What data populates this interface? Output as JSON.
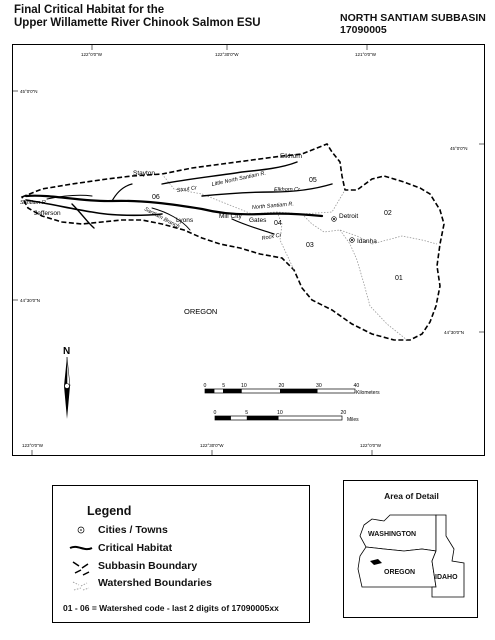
{
  "title": {
    "line1": "Final Critical Habitat for the",
    "line2": "Upper Willamette River Chinook Salmon ESU"
  },
  "subbasin": {
    "name": "NORTH SANTIAM SUBBASIN",
    "code": "17090005"
  },
  "coords": {
    "top_lon_1": "122°0'0\"W",
    "top_lon_2": "122°30'0\"W",
    "top_lon_3": "121°0'0\"W",
    "left_lat_top": "45°0'0\"N",
    "right_lat_top": "45°0'0\"N",
    "left_lat_bottom": "44°30'0\"N",
    "right_lat_bottom": "44°30'0\"N",
    "bottom_lon_1": "123°0'0\"W",
    "bottom_lon_2": "122°30'0\"W",
    "bottom_lon_3": "122°0'0\"W"
  },
  "places": {
    "stayton": "Stayton",
    "jefferson": "Jefferson",
    "santiam": "Santiam R.",
    "lyons": "Lyons",
    "mill_city": "Mill City",
    "gates": "Gates",
    "elkhorn": "Elkhorn",
    "detroit": "Detroit",
    "idanha": "Idanha",
    "oregon": "OREGON"
  },
  "rivers": {
    "stout": "Stout Cr",
    "little_north": "Little North Santiam R.",
    "elkhorn_cr": "Elkhorn Cr",
    "north_santiam": "North Santiam R.",
    "rock_cr": "Rock Cr",
    "santiam_branch": "Santiam Branch"
  },
  "watersheds": {
    "w01": "01",
    "w02": "02",
    "w03": "03",
    "w04": "04",
    "w05": "05",
    "w06": "06"
  },
  "north_arrow": "N",
  "scale": {
    "km_ticks": [
      "0",
      "5",
      "10",
      "20",
      "30",
      "40"
    ],
    "km_unit": "Kilometers",
    "mi_ticks": [
      "0",
      "5",
      "10",
      "20"
    ],
    "mi_unit": "Miles"
  },
  "legend": {
    "title": "Legend",
    "cities": "Cities / Towns",
    "critical": "Critical Habitat",
    "subbasin": "Subbasin Boundary",
    "watershed": "Watershed Boundaries",
    "note": "01 - 06 = Watershed code - last 2 digits of 17090005xx"
  },
  "detail": {
    "title": "Area of Detail",
    "washington": "WASHINGTON",
    "oregon": "OREGON",
    "idaho": "IDAHO"
  }
}
